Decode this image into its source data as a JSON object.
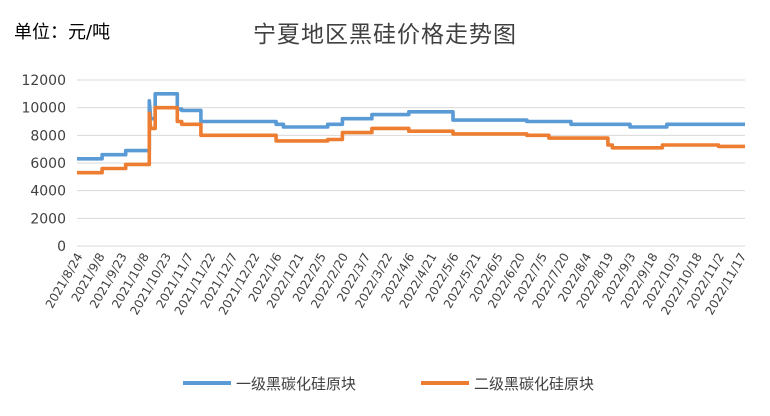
{
  "unit_label": "单位：元/吨",
  "chart_data": {
    "type": "line",
    "title": "宁夏地区黑硅价格走势图",
    "xlabel": "",
    "ylabel": "",
    "ylim": [
      0,
      12000
    ],
    "yticks": [
      0,
      2000,
      4000,
      6000,
      8000,
      10000,
      12000
    ],
    "grid": true,
    "legend_position": "bottom",
    "x": [
      "2021/8/24",
      "2021/9/8",
      "2021/9/23",
      "2021/10/8",
      "2021/10/23",
      "2021/11/7",
      "2021/11/22",
      "2021/12/7",
      "2021/12/22",
      "2022/1/6",
      "2022/1/21",
      "2022/2/5",
      "2022/2/20",
      "2022/3/7",
      "2022/3/22",
      "2022/4/6",
      "2022/4/21",
      "2022/5/6",
      "2022/5/21",
      "2022/6/5",
      "2022/6/20",
      "2022/7/5",
      "2022/7/20",
      "2022/8/4",
      "2022/8/19",
      "2022/9/3",
      "2022/9/18",
      "2022/10/3",
      "2022/10/18",
      "2022/11/2",
      "2022/11/17"
    ],
    "series": [
      {
        "name": "一级黑碳化硅原块",
        "color": "#5b9bd5",
        "points": [
          [
            "2021/8/24",
            6300
          ],
          [
            "2021/9/10",
            6300
          ],
          [
            "2021/9/10",
            6600
          ],
          [
            "2021/9/26",
            6600
          ],
          [
            "2021/9/26",
            6900
          ],
          [
            "2021/10/12",
            6900
          ],
          [
            "2021/10/12",
            10500
          ],
          [
            "2021/10/13",
            9200
          ],
          [
            "2021/10/16",
            9200
          ],
          [
            "2021/10/16",
            11000
          ],
          [
            "2021/10/31",
            11000
          ],
          [
            "2021/10/31",
            9900
          ],
          [
            "2021/11/3",
            9900
          ],
          [
            "2021/11/3",
            9800
          ],
          [
            "2021/11/16",
            9800
          ],
          [
            "2021/11/16",
            9000
          ],
          [
            "2022/1/6",
            9000
          ],
          [
            "2022/1/6",
            8800
          ],
          [
            "2022/1/11",
            8800
          ],
          [
            "2022/1/11",
            8600
          ],
          [
            "2022/2/10",
            8600
          ],
          [
            "2022/2/10",
            8800
          ],
          [
            "2022/2/20",
            8800
          ],
          [
            "2022/2/20",
            9200
          ],
          [
            "2022/3/12",
            9200
          ],
          [
            "2022/3/12",
            9500
          ],
          [
            "2022/4/6",
            9500
          ],
          [
            "2022/4/6",
            9700
          ],
          [
            "2022/5/6",
            9700
          ],
          [
            "2022/5/6",
            9100
          ],
          [
            "2022/6/25",
            9100
          ],
          [
            "2022/6/25",
            9000
          ],
          [
            "2022/7/25",
            9000
          ],
          [
            "2022/7/25",
            8800
          ],
          [
            "2022/9/3",
            8800
          ],
          [
            "2022/9/3",
            8600
          ],
          [
            "2022/9/28",
            8600
          ],
          [
            "2022/9/28",
            8800
          ],
          [
            "2022/11/20",
            8800
          ]
        ]
      },
      {
        "name": "二级黑碳化硅原块",
        "color": "#ed7d31",
        "points": [
          [
            "2021/8/24",
            5300
          ],
          [
            "2021/9/10",
            5300
          ],
          [
            "2021/9/10",
            5600
          ],
          [
            "2021/9/26",
            5600
          ],
          [
            "2021/9/26",
            5900
          ],
          [
            "2021/10/12",
            5900
          ],
          [
            "2021/10/12",
            9600
          ],
          [
            "2021/10/13",
            8500
          ],
          [
            "2021/10/16",
            8500
          ],
          [
            "2021/10/16",
            10000
          ],
          [
            "2021/10/31",
            10000
          ],
          [
            "2021/10/31",
            9000
          ],
          [
            "2021/11/3",
            9000
          ],
          [
            "2021/11/3",
            8800
          ],
          [
            "2021/11/16",
            8800
          ],
          [
            "2021/11/16",
            8000
          ],
          [
            "2022/1/6",
            8000
          ],
          [
            "2022/1/6",
            7600
          ],
          [
            "2022/2/10",
            7600
          ],
          [
            "2022/2/10",
            7700
          ],
          [
            "2022/2/20",
            7700
          ],
          [
            "2022/2/20",
            8200
          ],
          [
            "2022/3/12",
            8200
          ],
          [
            "2022/3/12",
            8500
          ],
          [
            "2022/4/6",
            8500
          ],
          [
            "2022/4/6",
            8300
          ],
          [
            "2022/5/6",
            8300
          ],
          [
            "2022/5/6",
            8100
          ],
          [
            "2022/6/25",
            8100
          ],
          [
            "2022/6/25",
            8000
          ],
          [
            "2022/7/10",
            8000
          ],
          [
            "2022/7/10",
            7800
          ],
          [
            "2022/8/19",
            7800
          ],
          [
            "2022/8/19",
            7300
          ],
          [
            "2022/8/22",
            7300
          ],
          [
            "2022/8/22",
            7100
          ],
          [
            "2022/9/25",
            7100
          ],
          [
            "2022/9/25",
            7300
          ],
          [
            "2022/11/2",
            7300
          ],
          [
            "2022/11/2",
            7200
          ],
          [
            "2022/11/20",
            7200
          ]
        ]
      }
    ]
  }
}
